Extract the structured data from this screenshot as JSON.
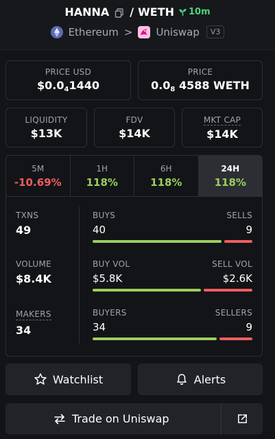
{
  "header": {
    "base_token": "HANNA",
    "separator": "/",
    "quote_token": "WETH",
    "age": "10m",
    "chain": "Ethereum",
    "chevron": ">",
    "dex": "Uniswap",
    "dex_version": "V3",
    "icons": [
      "copy-icon",
      "seedling-icon",
      "ethereum-icon",
      "uniswap-icon"
    ]
  },
  "price_usd": {
    "label": "PRICE USD",
    "value_prefix": "$0.0",
    "value_zeros": "4",
    "value_digits": "1440"
  },
  "price": {
    "label": "PRICE",
    "value_prefix": "0.0",
    "value_zeros": "8",
    "value_digits": "4588 WETH"
  },
  "metrics": [
    {
      "label": "LIQUIDITY",
      "value": "$13K"
    },
    {
      "label": "FDV",
      "value": "$14K"
    },
    {
      "label": "MKT CAP",
      "value": "$14K"
    }
  ],
  "tabs": [
    {
      "label": "5M",
      "value": "-10.69%",
      "trend": "negative"
    },
    {
      "label": "1H",
      "value": "118%",
      "trend": "positive"
    },
    {
      "label": "6H",
      "value": "118%",
      "trend": "positive"
    },
    {
      "label": "24H",
      "value": "118%",
      "trend": "positive",
      "active": true
    }
  ],
  "stats": {
    "txns": {
      "label": "TXNS",
      "value": "49"
    },
    "volume": {
      "label": "VOLUME",
      "value": "$8.4K"
    },
    "makers": {
      "label": "MAKERS",
      "value": "34"
    },
    "buys_sells": {
      "left_label": "BUYS",
      "right_label": "SELLS",
      "left_value": "40",
      "right_value": "9",
      "left_fraction": 0.82
    },
    "buy_sell_vol": {
      "left_label": "BUY VOL",
      "right_label": "SELL VOL",
      "left_value": "$5.8K",
      "right_value": "$2.6K",
      "left_fraction": 0.69
    },
    "buyers_sellers": {
      "left_label": "BUYERS",
      "right_label": "SELLERS",
      "left_value": "34",
      "right_value": "9",
      "left_fraction": 0.79
    }
  },
  "buttons": {
    "watchlist": "Watchlist",
    "alerts": "Alerts",
    "trade": "Trade on Uniswap"
  },
  "colors": {
    "positive": "#9ccf5b",
    "negative": "#f05d5e",
    "age_green": "#4bd47b",
    "background": "#131418"
  }
}
